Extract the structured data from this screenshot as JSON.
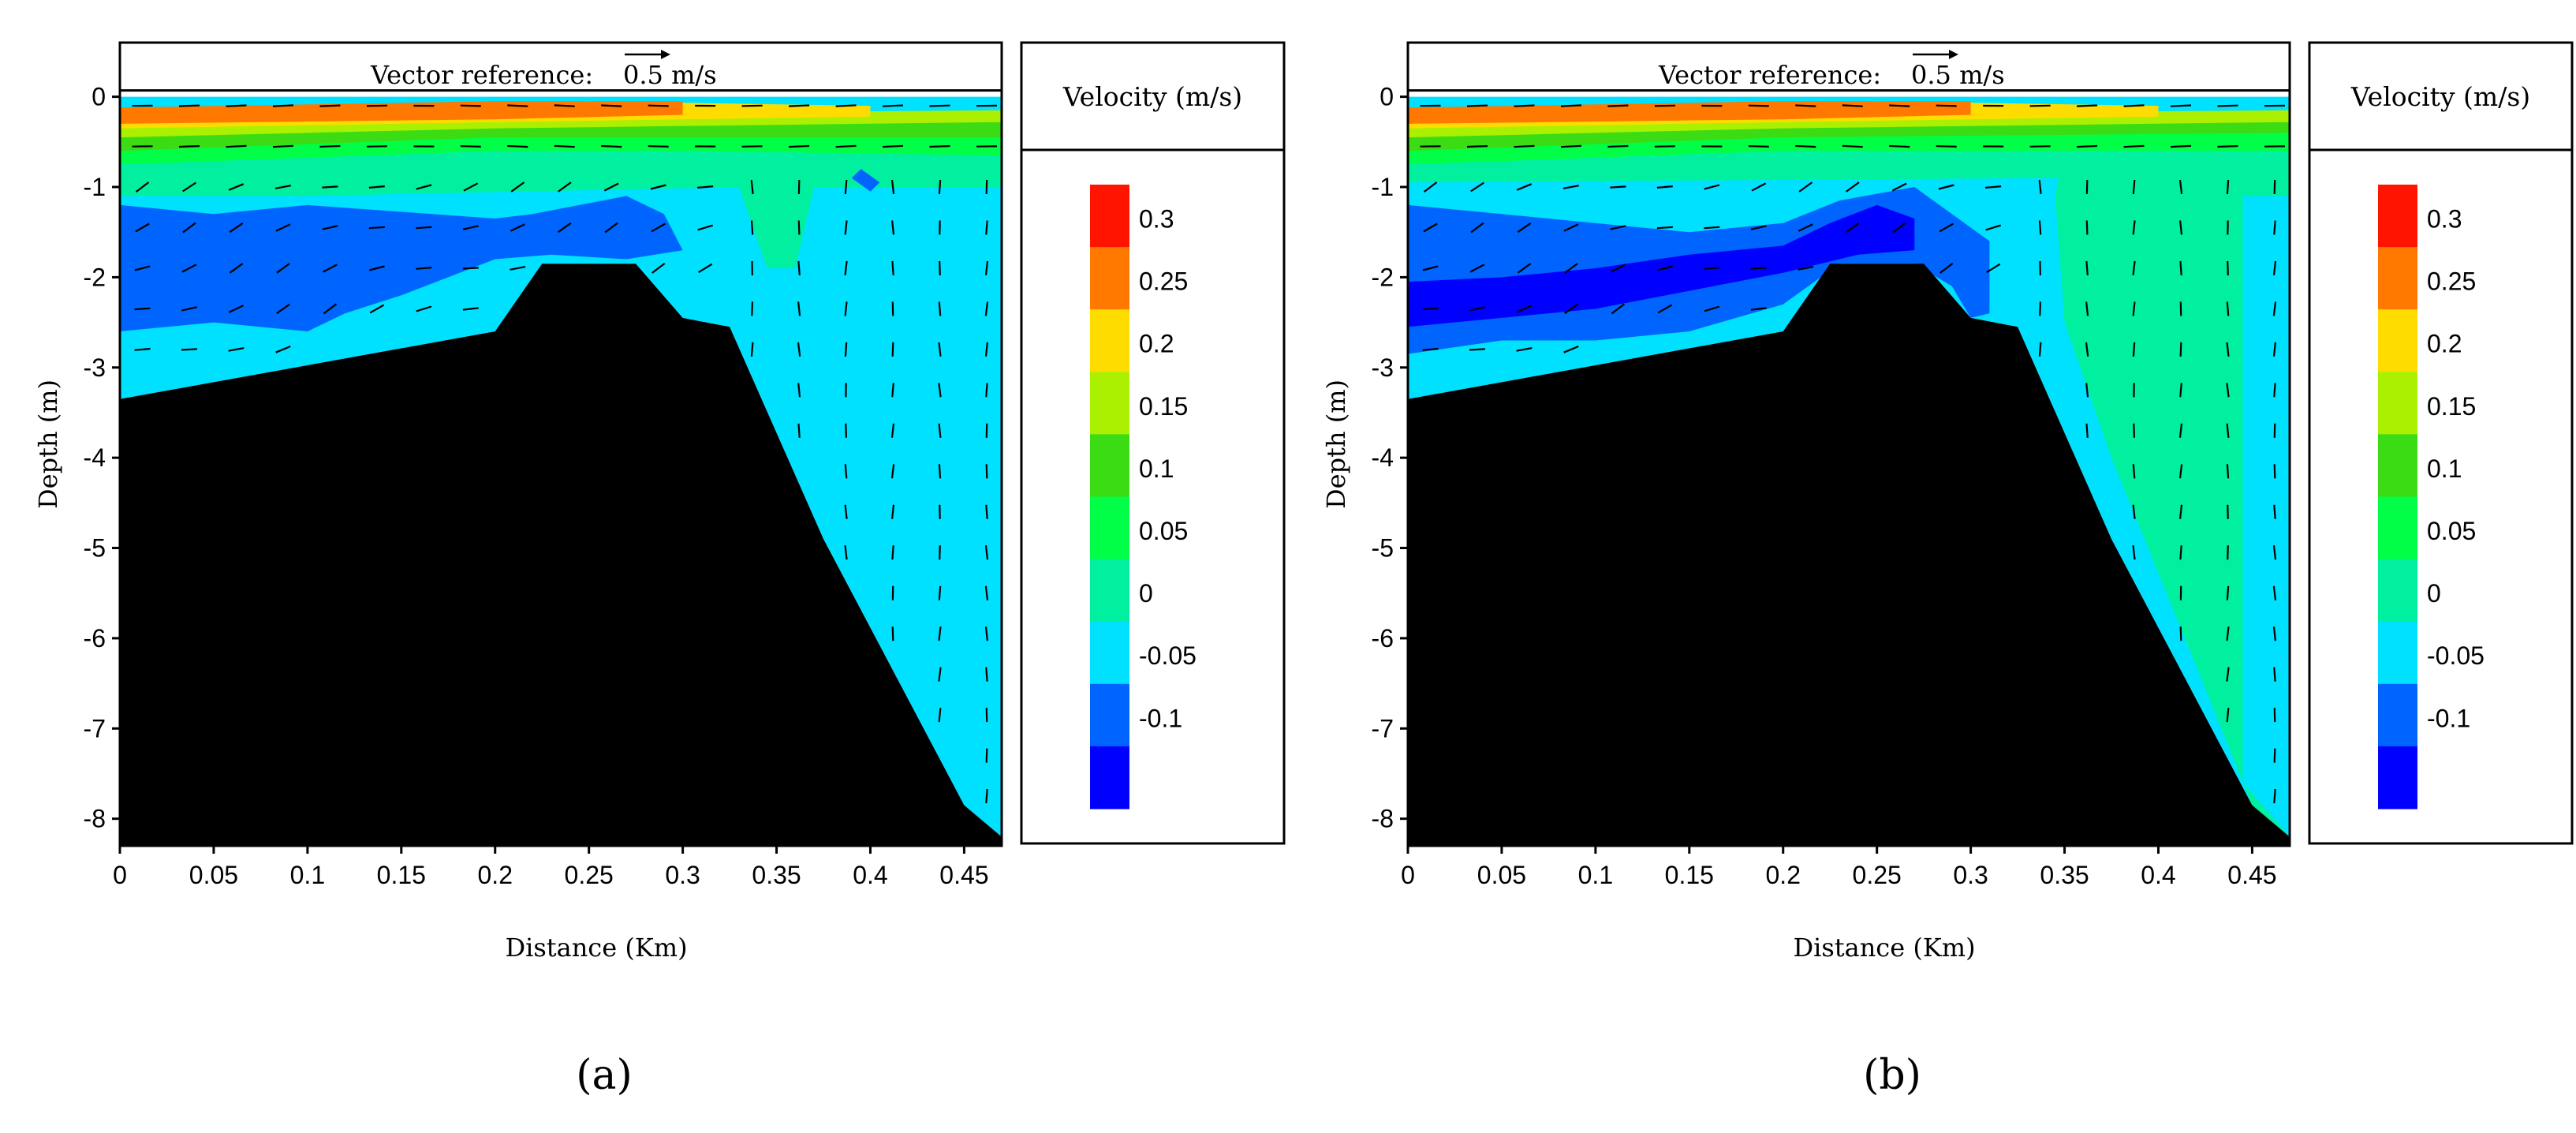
{
  "colors": {
    "velocity": {
      "-0.1": "#0000ff",
      "-0.05": "#0064ff",
      "0": "#00e0ff",
      "0.05": "#00f0a0",
      "0.1": "#00ff46",
      "0.15": "#3cdc14",
      "0.2": "#aaf000",
      "0.25": "#ffdc00",
      "0.3": "#ff7800",
      "0.35": "#ff1400"
    },
    "bathymetry": "#000000"
  },
  "chart_data": [
    {
      "type": "contour",
      "panel_label": "(a)",
      "xlabel": "Distance (Km)",
      "ylabel": "Depth (m)",
      "xlim": [
        0,
        0.47
      ],
      "ylim": [
        -8.3,
        0.6
      ],
      "xticks": [
        "0",
        "0.05",
        "0.1",
        "0.15",
        "0.2",
        "0.25",
        "0.3",
        "0.35",
        "0.4",
        "0.45"
      ],
      "yticks": [
        "0",
        "-1",
        "-2",
        "-3",
        "-4",
        "-5",
        "-6",
        "-7",
        "-8"
      ],
      "vector_reference": {
        "label": "Vector reference:",
        "value": "0.5 m/s"
      },
      "legend": {
        "title": "Velocity (m/s)",
        "levels": [
          -0.1,
          -0.05,
          0,
          0.05,
          0.1,
          0.15,
          0.2,
          0.25,
          0.3,
          0.35
        ],
        "tick_labels": [
          "0.3",
          "0.25",
          "0.2",
          "0.15",
          "0.1",
          "0.05",
          "0",
          "-0.05",
          "-0.1"
        ]
      },
      "bed_profile": [
        [
          0,
          -3.35
        ],
        [
          0.2,
          -2.6
        ],
        [
          0.225,
          -1.85
        ],
        [
          0.275,
          -1.85
        ],
        [
          0.3,
          -2.45
        ],
        [
          0.325,
          -2.55
        ],
        [
          0.375,
          -4.9
        ],
        [
          0.45,
          -7.85
        ],
        [
          0.47,
          -8.2
        ]
      ],
      "contour_regions": [
        {
          "level": 0,
          "points": [
            [
              0,
              0
            ],
            [
              0.47,
              0
            ],
            [
              0.47,
              -8.2
            ],
            [
              0.45,
              -7.85
            ],
            [
              0.375,
              -4.9
            ],
            [
              0.325,
              -2.55
            ],
            [
              0.3,
              -2.45
            ],
            [
              0.275,
              -1.85
            ],
            [
              0.225,
              -1.85
            ],
            [
              0.2,
              -2.6
            ],
            [
              0,
              -3.35
            ]
          ]
        },
        {
          "level": 0.05,
          "points": [
            [
              0,
              -0.55
            ],
            [
              0.1,
              -0.55
            ],
            [
              0.2,
              -0.5
            ],
            [
              0.3,
              -0.5
            ],
            [
              0.47,
              -0.6
            ],
            [
              0.47,
              -1.0
            ],
            [
              0.41,
              -1.0
            ],
            [
              0.37,
              -1.0
            ],
            [
              0.36,
              -1.9
            ],
            [
              0.345,
              -1.9
            ],
            [
              0.33,
              -1.0
            ],
            [
              0.1,
              -1.1
            ],
            [
              0,
              -1.1
            ]
          ]
        },
        {
          "level": 0.1,
          "points": [
            [
              0,
              -0.4
            ],
            [
              0.2,
              -0.35
            ],
            [
              0.3,
              -0.35
            ],
            [
              0.47,
              -0.45
            ],
            [
              0.47,
              -0.65
            ],
            [
              0.3,
              -0.6
            ],
            [
              0.2,
              -0.6
            ],
            [
              0,
              -0.75
            ]
          ]
        },
        {
          "level": 0.15,
          "points": [
            [
              0,
              -0.3
            ],
            [
              0.47,
              -0.25
            ],
            [
              0.47,
              -0.45
            ],
            [
              0.2,
              -0.45
            ],
            [
              0,
              -0.6
            ]
          ]
        },
        {
          "level": 0.2,
          "points": [
            [
              0,
              -0.22
            ],
            [
              0.47,
              -0.15
            ],
            [
              0.47,
              -0.28
            ],
            [
              0.2,
              -0.35
            ],
            [
              0,
              -0.45
            ]
          ]
        },
        {
          "level": 0.25,
          "points": [
            [
              0,
              -0.15
            ],
            [
              0.25,
              -0.05
            ],
            [
              0.4,
              -0.1
            ],
            [
              0.4,
              -0.22
            ],
            [
              0.2,
              -0.28
            ],
            [
              0,
              -0.35
            ]
          ]
        },
        {
          "level": 0.3,
          "points": [
            [
              0,
              -0.12
            ],
            [
              0.2,
              -0.05
            ],
            [
              0.3,
              -0.05
            ],
            [
              0.3,
              -0.2
            ],
            [
              0.2,
              -0.25
            ],
            [
              0,
              -0.3
            ]
          ]
        },
        {
          "level": -0.05,
          "points": [
            [
              0,
              -1.2
            ],
            [
              0.05,
              -1.3
            ],
            [
              0.1,
              -1.2
            ],
            [
              0.2,
              -1.35
            ],
            [
              0.22,
              -1.3
            ],
            [
              0.27,
              -1.1
            ],
            [
              0.29,
              -1.3
            ],
            [
              0.3,
              -1.7
            ],
            [
              0.27,
              -1.8
            ],
            [
              0.23,
              -1.75
            ],
            [
              0.2,
              -1.8
            ],
            [
              0.15,
              -2.2
            ],
            [
              0.12,
              -2.4
            ],
            [
              0.1,
              -2.6
            ],
            [
              0.05,
              -2.5
            ],
            [
              0,
              -2.6
            ]
          ]
        },
        {
          "level": -0.05,
          "points": [
            [
              0.395,
              -0.8
            ],
            [
              0.405,
              -0.95
            ],
            [
              0.4,
              -1.05
            ],
            [
              0.39,
              -0.9
            ]
          ]
        }
      ]
    },
    {
      "type": "contour",
      "panel_label": "(b)",
      "xlabel": "Distance (Km)",
      "ylabel": "Depth (m)",
      "xlim": [
        0,
        0.47
      ],
      "ylim": [
        -8.3,
        0.6
      ],
      "xticks": [
        "0",
        "0.05",
        "0.1",
        "0.15",
        "0.2",
        "0.25",
        "0.3",
        "0.35",
        "0.4",
        "0.45"
      ],
      "yticks": [
        "0",
        "-1",
        "-2",
        "-3",
        "-4",
        "-5",
        "-6",
        "-7",
        "-8"
      ],
      "vector_reference": {
        "label": "Vector reference:",
        "value": "0.5 m/s"
      },
      "legend": {
        "title": "Velocity (m/s)",
        "levels": [
          -0.1,
          -0.05,
          0,
          0.05,
          0.1,
          0.15,
          0.2,
          0.25,
          0.3,
          0.35
        ],
        "tick_labels": [
          "0.3",
          "0.25",
          "0.2",
          "0.15",
          "0.1",
          "0.05",
          "0",
          "-0.05",
          "-0.1"
        ]
      },
      "bed_profile": [
        [
          0,
          -3.35
        ],
        [
          0.2,
          -2.6
        ],
        [
          0.225,
          -1.85
        ],
        [
          0.275,
          -1.85
        ],
        [
          0.3,
          -2.45
        ],
        [
          0.325,
          -2.55
        ],
        [
          0.375,
          -4.9
        ],
        [
          0.45,
          -7.85
        ],
        [
          0.47,
          -8.2
        ]
      ],
      "contour_regions": [
        {
          "level": 0,
          "points": [
            [
              0,
              0
            ],
            [
              0.47,
              0
            ],
            [
              0.47,
              -8.2
            ],
            [
              0.45,
              -7.85
            ],
            [
              0.375,
              -4.9
            ],
            [
              0.325,
              -2.55
            ],
            [
              0.3,
              -2.45
            ],
            [
              0.275,
              -1.85
            ],
            [
              0.225,
              -1.85
            ],
            [
              0.2,
              -2.6
            ],
            [
              0,
              -3.35
            ]
          ]
        },
        {
          "level": 0.05,
          "points": [
            [
              0.35,
              -0.6
            ],
            [
              0.47,
              -0.6
            ],
            [
              0.47,
              -1.1
            ],
            [
              0.445,
              -1.1
            ],
            [
              0.445,
              -7.6
            ],
            [
              0.47,
              -8.2
            ],
            [
              0.45,
              -7.85
            ],
            [
              0.42,
              -6.3
            ],
            [
              0.375,
              -4.0
            ],
            [
              0.35,
              -2.5
            ],
            [
              0.345,
              -1.1
            ]
          ]
        },
        {
          "level": 0.05,
          "points": [
            [
              0,
              -0.55
            ],
            [
              0.35,
              -0.5
            ],
            [
              0.35,
              -0.9
            ],
            [
              0,
              -0.95
            ]
          ]
        },
        {
          "level": 0.1,
          "points": [
            [
              0,
              -0.4
            ],
            [
              0.2,
              -0.35
            ],
            [
              0.3,
              -0.35
            ],
            [
              0.47,
              -0.4
            ],
            [
              0.47,
              -0.6
            ],
            [
              0.3,
              -0.6
            ],
            [
              0.2,
              -0.6
            ],
            [
              0,
              -0.75
            ]
          ]
        },
        {
          "level": 0.15,
          "points": [
            [
              0,
              -0.3
            ],
            [
              0.47,
              -0.25
            ],
            [
              0.47,
              -0.4
            ],
            [
              0.2,
              -0.45
            ],
            [
              0,
              -0.6
            ]
          ]
        },
        {
          "level": 0.2,
          "points": [
            [
              0,
              -0.22
            ],
            [
              0.47,
              -0.15
            ],
            [
              0.47,
              -0.28
            ],
            [
              0.2,
              -0.35
            ],
            [
              0,
              -0.45
            ]
          ]
        },
        {
          "level": 0.25,
          "points": [
            [
              0,
              -0.15
            ],
            [
              0.25,
              -0.05
            ],
            [
              0.4,
              -0.1
            ],
            [
              0.4,
              -0.22
            ],
            [
              0.2,
              -0.28
            ],
            [
              0,
              -0.35
            ]
          ]
        },
        {
          "level": 0.3,
          "points": [
            [
              0,
              -0.12
            ],
            [
              0.2,
              -0.05
            ],
            [
              0.3,
              -0.05
            ],
            [
              0.3,
              -0.2
            ],
            [
              0.2,
              -0.25
            ],
            [
              0,
              -0.3
            ]
          ]
        },
        {
          "level": -0.05,
          "points": [
            [
              0,
              -1.2
            ],
            [
              0.05,
              -1.3
            ],
            [
              0.1,
              -1.4
            ],
            [
              0.15,
              -1.5
            ],
            [
              0.2,
              -1.4
            ],
            [
              0.23,
              -1.15
            ],
            [
              0.27,
              -1.0
            ],
            [
              0.29,
              -1.3
            ],
            [
              0.31,
              -1.6
            ],
            [
              0.31,
              -2.4
            ],
            [
              0.3,
              -2.45
            ],
            [
              0.29,
              -2.1
            ],
            [
              0.27,
              -1.85
            ],
            [
              0.23,
              -1.85
            ],
            [
              0.2,
              -2.3
            ],
            [
              0.15,
              -2.6
            ],
            [
              0.1,
              -2.7
            ],
            [
              0.05,
              -2.7
            ],
            [
              0,
              -2.85
            ]
          ]
        },
        {
          "level": -0.1,
          "points": [
            [
              0,
              -2.05
            ],
            [
              0.05,
              -2.0
            ],
            [
              0.1,
              -1.9
            ],
            [
              0.15,
              -1.75
            ],
            [
              0.2,
              -1.65
            ],
            [
              0.225,
              -1.4
            ],
            [
              0.25,
              -1.2
            ],
            [
              0.27,
              -1.35
            ],
            [
              0.27,
              -1.7
            ],
            [
              0.24,
              -1.75
            ],
            [
              0.2,
              -1.95
            ],
            [
              0.15,
              -2.15
            ],
            [
              0.1,
              -2.35
            ],
            [
              0.05,
              -2.45
            ],
            [
              0,
              -2.55
            ]
          ]
        }
      ]
    }
  ]
}
